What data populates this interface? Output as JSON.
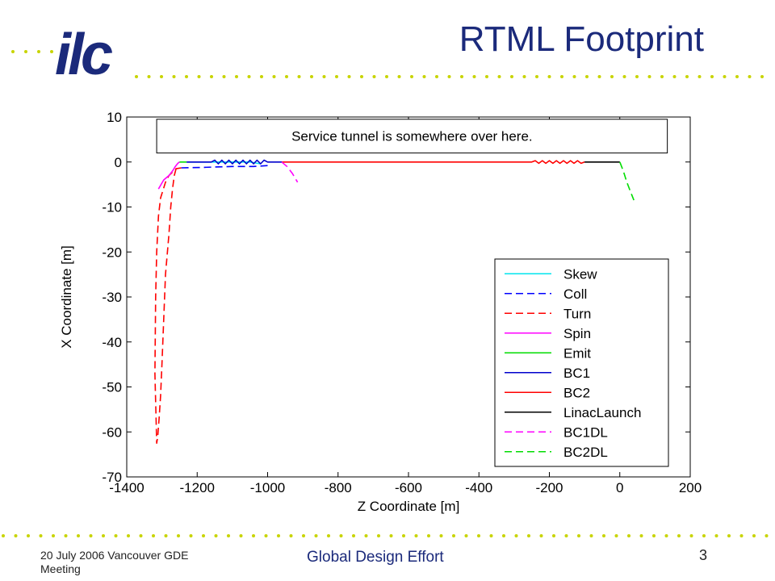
{
  "slide": {
    "title": "RTML Footprint",
    "logo_text": "ilc",
    "footer_left": "20 July 2006 Vancouver GDE Meeting",
    "footer_center": "Global Design Effort",
    "page_number": "3"
  },
  "colors": {
    "title": "#1b2a7b",
    "logo": "#1b2a7b",
    "dots": "#c8d400"
  },
  "chart_data": {
    "type": "line",
    "xlabel": "Z Coordinate [m]",
    "ylabel": "X Coordinate [m]",
    "xlim": [
      -1400,
      200
    ],
    "ylim": [
      -70,
      10
    ],
    "xticks": [
      -1400,
      -1200,
      -1000,
      -800,
      -600,
      -400,
      -200,
      0,
      200
    ],
    "yticks": [
      10,
      0,
      -10,
      -20,
      -30,
      -40,
      -50,
      -60,
      -70
    ],
    "grid": false,
    "legend_position": "bottom-right",
    "annotation": {
      "text": "Service tunnel is somewhere over here.",
      "box_x": [
        -1315,
        135
      ],
      "box_y": [
        2,
        9.5
      ]
    },
    "series": [
      {
        "name": "Skew",
        "color": "#00e5ee",
        "dash": "solid",
        "x": [
          -1230,
          -1050,
          -1020
        ],
        "y": [
          0,
          0,
          -0.4
        ]
      },
      {
        "name": "Coll",
        "color": "#0000ff",
        "dash": "dashed",
        "x": [
          -1245,
          -1180,
          -1100,
          -1040,
          -1000
        ],
        "y": [
          -1.3,
          -1.2,
          -1.0,
          -1.0,
          -0.8
        ]
      },
      {
        "name": "Turn",
        "color": "#ff0000",
        "dash": "dashed",
        "x": [
          -1260,
          -1265,
          -1270,
          -1275,
          -1280,
          -1290,
          -1295,
          -1300,
          -1304,
          -1308,
          -1312,
          -1315,
          -1320,
          -1318,
          -1315,
          -1310,
          -1304,
          -1296,
          -1290,
          -1280,
          -1260,
          -1245
        ],
        "y": [
          -1.5,
          -3,
          -6,
          -10,
          -16,
          -25,
          -35,
          -45,
          -52,
          -57,
          -61,
          -62.5,
          -47,
          -30,
          -20,
          -12,
          -8,
          -6,
          -4.5,
          -3,
          -1.5,
          -1.3
        ]
      },
      {
        "name": "Spin",
        "color": "#ff00ff",
        "dash": "solid",
        "x": [
          -1310,
          -1295,
          -1280,
          -1270,
          -1262,
          -1255,
          -1250
        ],
        "y": [
          -6,
          -4,
          -3,
          -2,
          -1,
          -0.3,
          0
        ]
      },
      {
        "name": "Emit",
        "color": "#00dd00",
        "dash": "solid",
        "x": [
          -1250,
          -1230
        ],
        "y": [
          0,
          0
        ]
      },
      {
        "name": "BC1",
        "color": "#0000cc",
        "dash": "solid",
        "x": [
          -1230,
          -1160,
          -1150,
          -1140,
          -1130,
          -1120,
          -1110,
          -1100,
          -1090,
          -1080,
          -1070,
          -1060,
          -1050,
          -1040,
          -1030,
          -1020,
          -1010,
          -1000,
          -960
        ],
        "y": [
          0,
          0,
          0.4,
          -0.4,
          0.4,
          -0.4,
          0.4,
          -0.4,
          0.4,
          -0.4,
          0.4,
          -0.4,
          0.4,
          -0.4,
          0.4,
          -0.4,
          0.4,
          0,
          0
        ]
      },
      {
        "name": "BC2",
        "color": "#ff0000",
        "dash": "solid",
        "x": [
          -960,
          -250,
          -240,
          -230,
          -220,
          -210,
          -200,
          -190,
          -180,
          -170,
          -160,
          -150,
          -140,
          -130,
          -120,
          -110,
          -100
        ],
        "y": [
          0,
          0,
          0.3,
          -0.3,
          0.3,
          -0.3,
          0.3,
          -0.3,
          0.3,
          -0.3,
          0.3,
          -0.3,
          0.3,
          -0.3,
          0.3,
          -0.3,
          0
        ]
      },
      {
        "name": "LinacLaunch",
        "color": "#000000",
        "dash": "solid",
        "x": [
          -100,
          0
        ],
        "y": [
          0,
          0
        ]
      },
      {
        "name": "BC1DL",
        "color": "#ff00ff",
        "dash": "dashed",
        "x": [
          -960,
          -945,
          -930,
          -915
        ],
        "y": [
          0,
          -1,
          -2.5,
          -4.5
        ]
      },
      {
        "name": "BC2DL",
        "color": "#00dd00",
        "dash": "dashed",
        "x": [
          0,
          10,
          20,
          30,
          40
        ],
        "y": [
          0,
          -2,
          -4.5,
          -6.5,
          -8.5
        ]
      }
    ]
  }
}
